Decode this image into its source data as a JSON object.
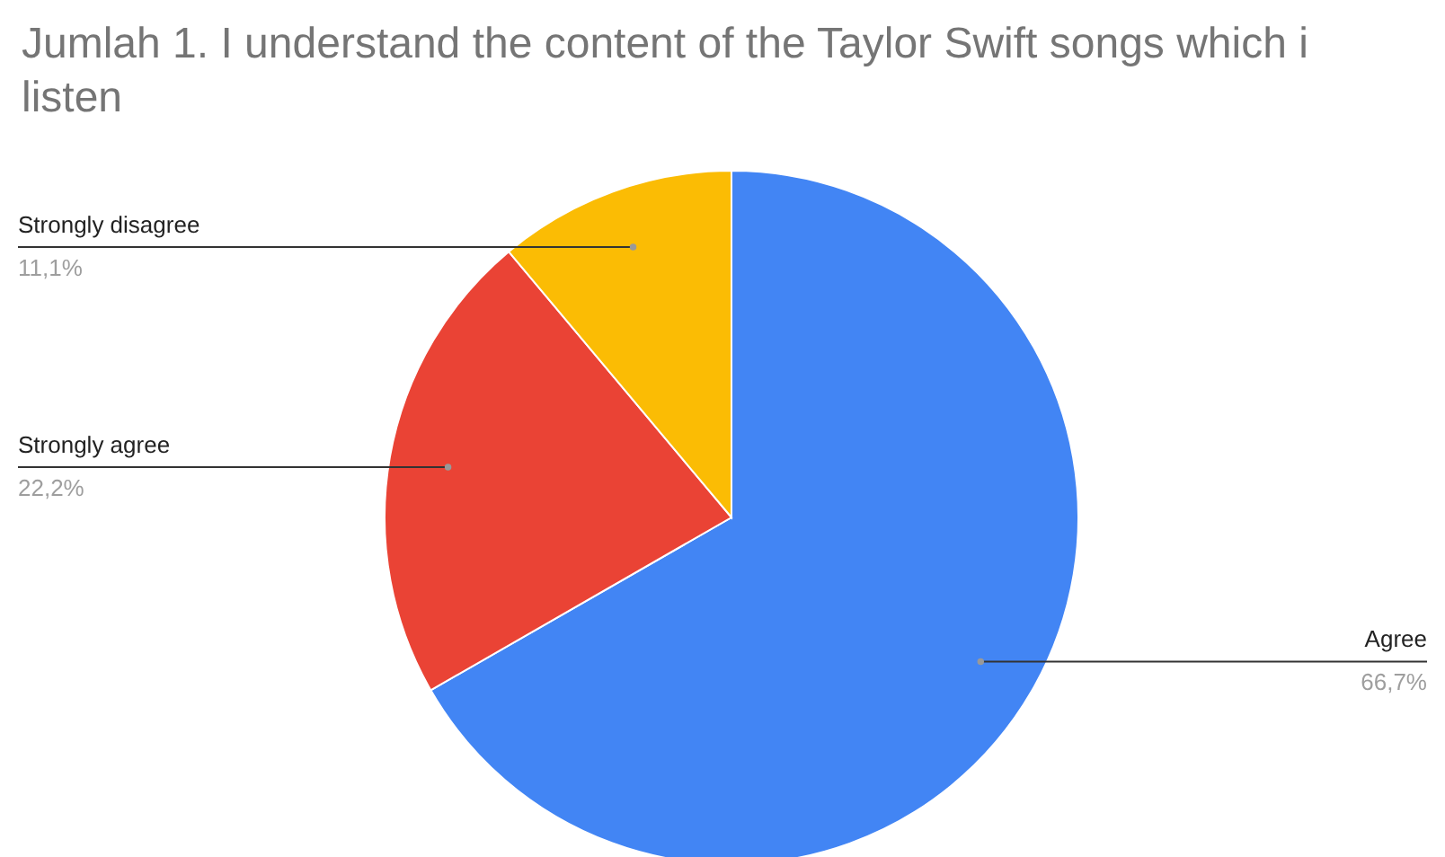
{
  "chart_data": {
    "type": "pie",
    "title": "Jumlah 1. I understand the content of the Taylor Swift songs which i listen",
    "categories": [
      "Agree",
      "Strongly agree",
      "Strongly disagree"
    ],
    "values": [
      66.7,
      22.2,
      11.1
    ],
    "value_labels": [
      "66,7%",
      "22,2%",
      "11,1%"
    ],
    "colors": [
      "#4285f4",
      "#ea4335",
      "#fbbc04"
    ]
  }
}
